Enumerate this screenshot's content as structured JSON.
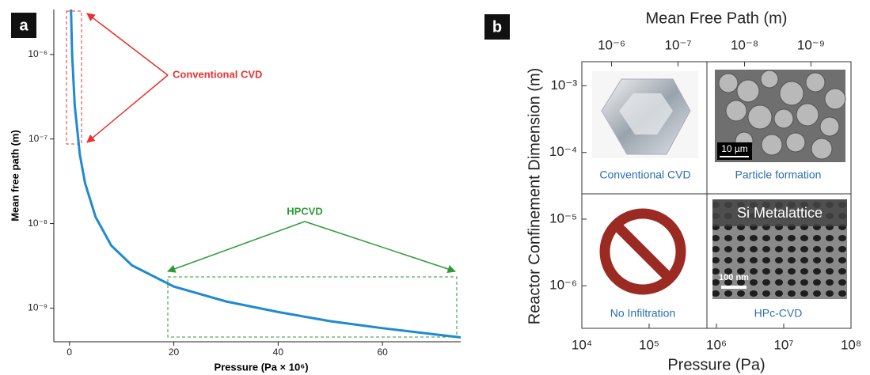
{
  "chart_data": [
    {
      "type": "line",
      "panel_label": "a",
      "x_label": "Pressure (Pa × 10⁶)",
      "y_label": "Mean free path (m)",
      "annotations": [
        "Conventional CVD",
        "HPCVD"
      ],
      "x": [
        0.3,
        0.5,
        1,
        2,
        3,
        5,
        8,
        12,
        20,
        30,
        40,
        50,
        60,
        75
      ],
      "series": [
        {
          "color": "#1f8ad0",
          "values": [
            3.4e-06,
            1e-06,
            2.5e-07,
            6.5e-08,
            3e-08,
            1.2e-08,
            5.5e-09,
            3.2e-09,
            1.8e-09,
            1.2e-09,
            9e-10,
            7e-10,
            5.8e-10,
            4.5e-10
          ]
        }
      ],
      "xlim": [
        -3,
        75
      ],
      "xticks": [
        0,
        20,
        40,
        60
      ],
      "ylim": [
        4e-10,
        3.4e-06
      ],
      "log_y": true,
      "yticks": [
        {
          "value": 1e-09,
          "label": "10⁻⁹"
        },
        {
          "value": 1e-08,
          "label": "10⁻⁸"
        },
        {
          "value": 1e-07,
          "label": "10⁻⁷"
        },
        {
          "value": 1e-06,
          "label": "10⁻⁶"
        }
      ]
    },
    {
      "type": "quadrant",
      "panel_label": "b",
      "x_label": "Pressure (Pa)",
      "x2_label": "Mean Free Path (m)",
      "y_label": "Reactor Confinement Dimension (m)",
      "log_x": true,
      "log_y": true,
      "xlim": [
        10000.0,
        100000000.0
      ],
      "xticks": [
        {
          "value": 10000.0,
          "label": "10⁴"
        },
        {
          "value": 100000.0,
          "label": "10⁵"
        },
        {
          "value": 1000000.0,
          "label": "10⁶"
        },
        {
          "value": 10000000.0,
          "label": "10⁷"
        },
        {
          "value": 100000000.0,
          "label": "10⁸"
        }
      ],
      "x2lim": [
        2.8e-06,
        2.5e-10
      ],
      "x2ticks": [
        {
          "value": 1e-06,
          "label": "10⁻⁶"
        },
        {
          "value": 1e-07,
          "label": "10⁻⁷"
        },
        {
          "value": 1e-08,
          "label": "10⁻⁸"
        },
        {
          "value": 1e-09,
          "label": "10⁻⁹"
        }
      ],
      "ylim": [
        2.3e-07,
        0.0023
      ],
      "yticks": [
        {
          "value": 0.001,
          "label": "10⁻³"
        },
        {
          "value": 0.0001,
          "label": "10⁻⁴"
        },
        {
          "value": 1e-05,
          "label": "10⁻⁵"
        },
        {
          "value": 1e-06,
          "label": "10⁻⁶"
        }
      ],
      "quadrants": [
        {
          "label": "Conventional CVD"
        },
        {
          "label": "Particle formation",
          "inset_text": "10 µm"
        },
        {
          "label": "No Infiltration"
        },
        {
          "label": "HPc-CVD",
          "inset_title": "Si Metalattice",
          "inset_text": "100 nm"
        }
      ]
    }
  ]
}
